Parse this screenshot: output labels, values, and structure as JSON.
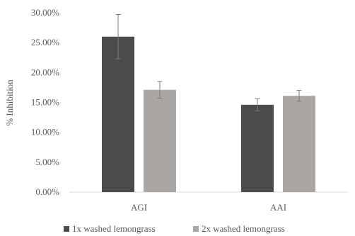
{
  "chart_data": {
    "type": "bar",
    "title": "",
    "xlabel": "",
    "ylabel": "% Inhibition",
    "ylim": [
      0,
      30
    ],
    "yticks": [
      "0.00%",
      "5.00%",
      "10.00%",
      "15.00%",
      "20.00%",
      "25.00%",
      "30.00%"
    ],
    "ytick_values": [
      0,
      5,
      10,
      15,
      20,
      25,
      30
    ],
    "categories": [
      "AGI",
      "AAI"
    ],
    "grid": false,
    "legend_position": "bottom",
    "series": [
      {
        "name": "1x washed lemongrass",
        "values": [
          26.0,
          14.6
        ],
        "errors": [
          3.7,
          1.0
        ],
        "color": "#4b4b4b"
      },
      {
        "name": "2x washed lemongrass",
        "values": [
          17.1,
          16.1
        ],
        "errors": [
          1.4,
          0.9
        ],
        "color": "#a9a6a3"
      }
    ]
  }
}
